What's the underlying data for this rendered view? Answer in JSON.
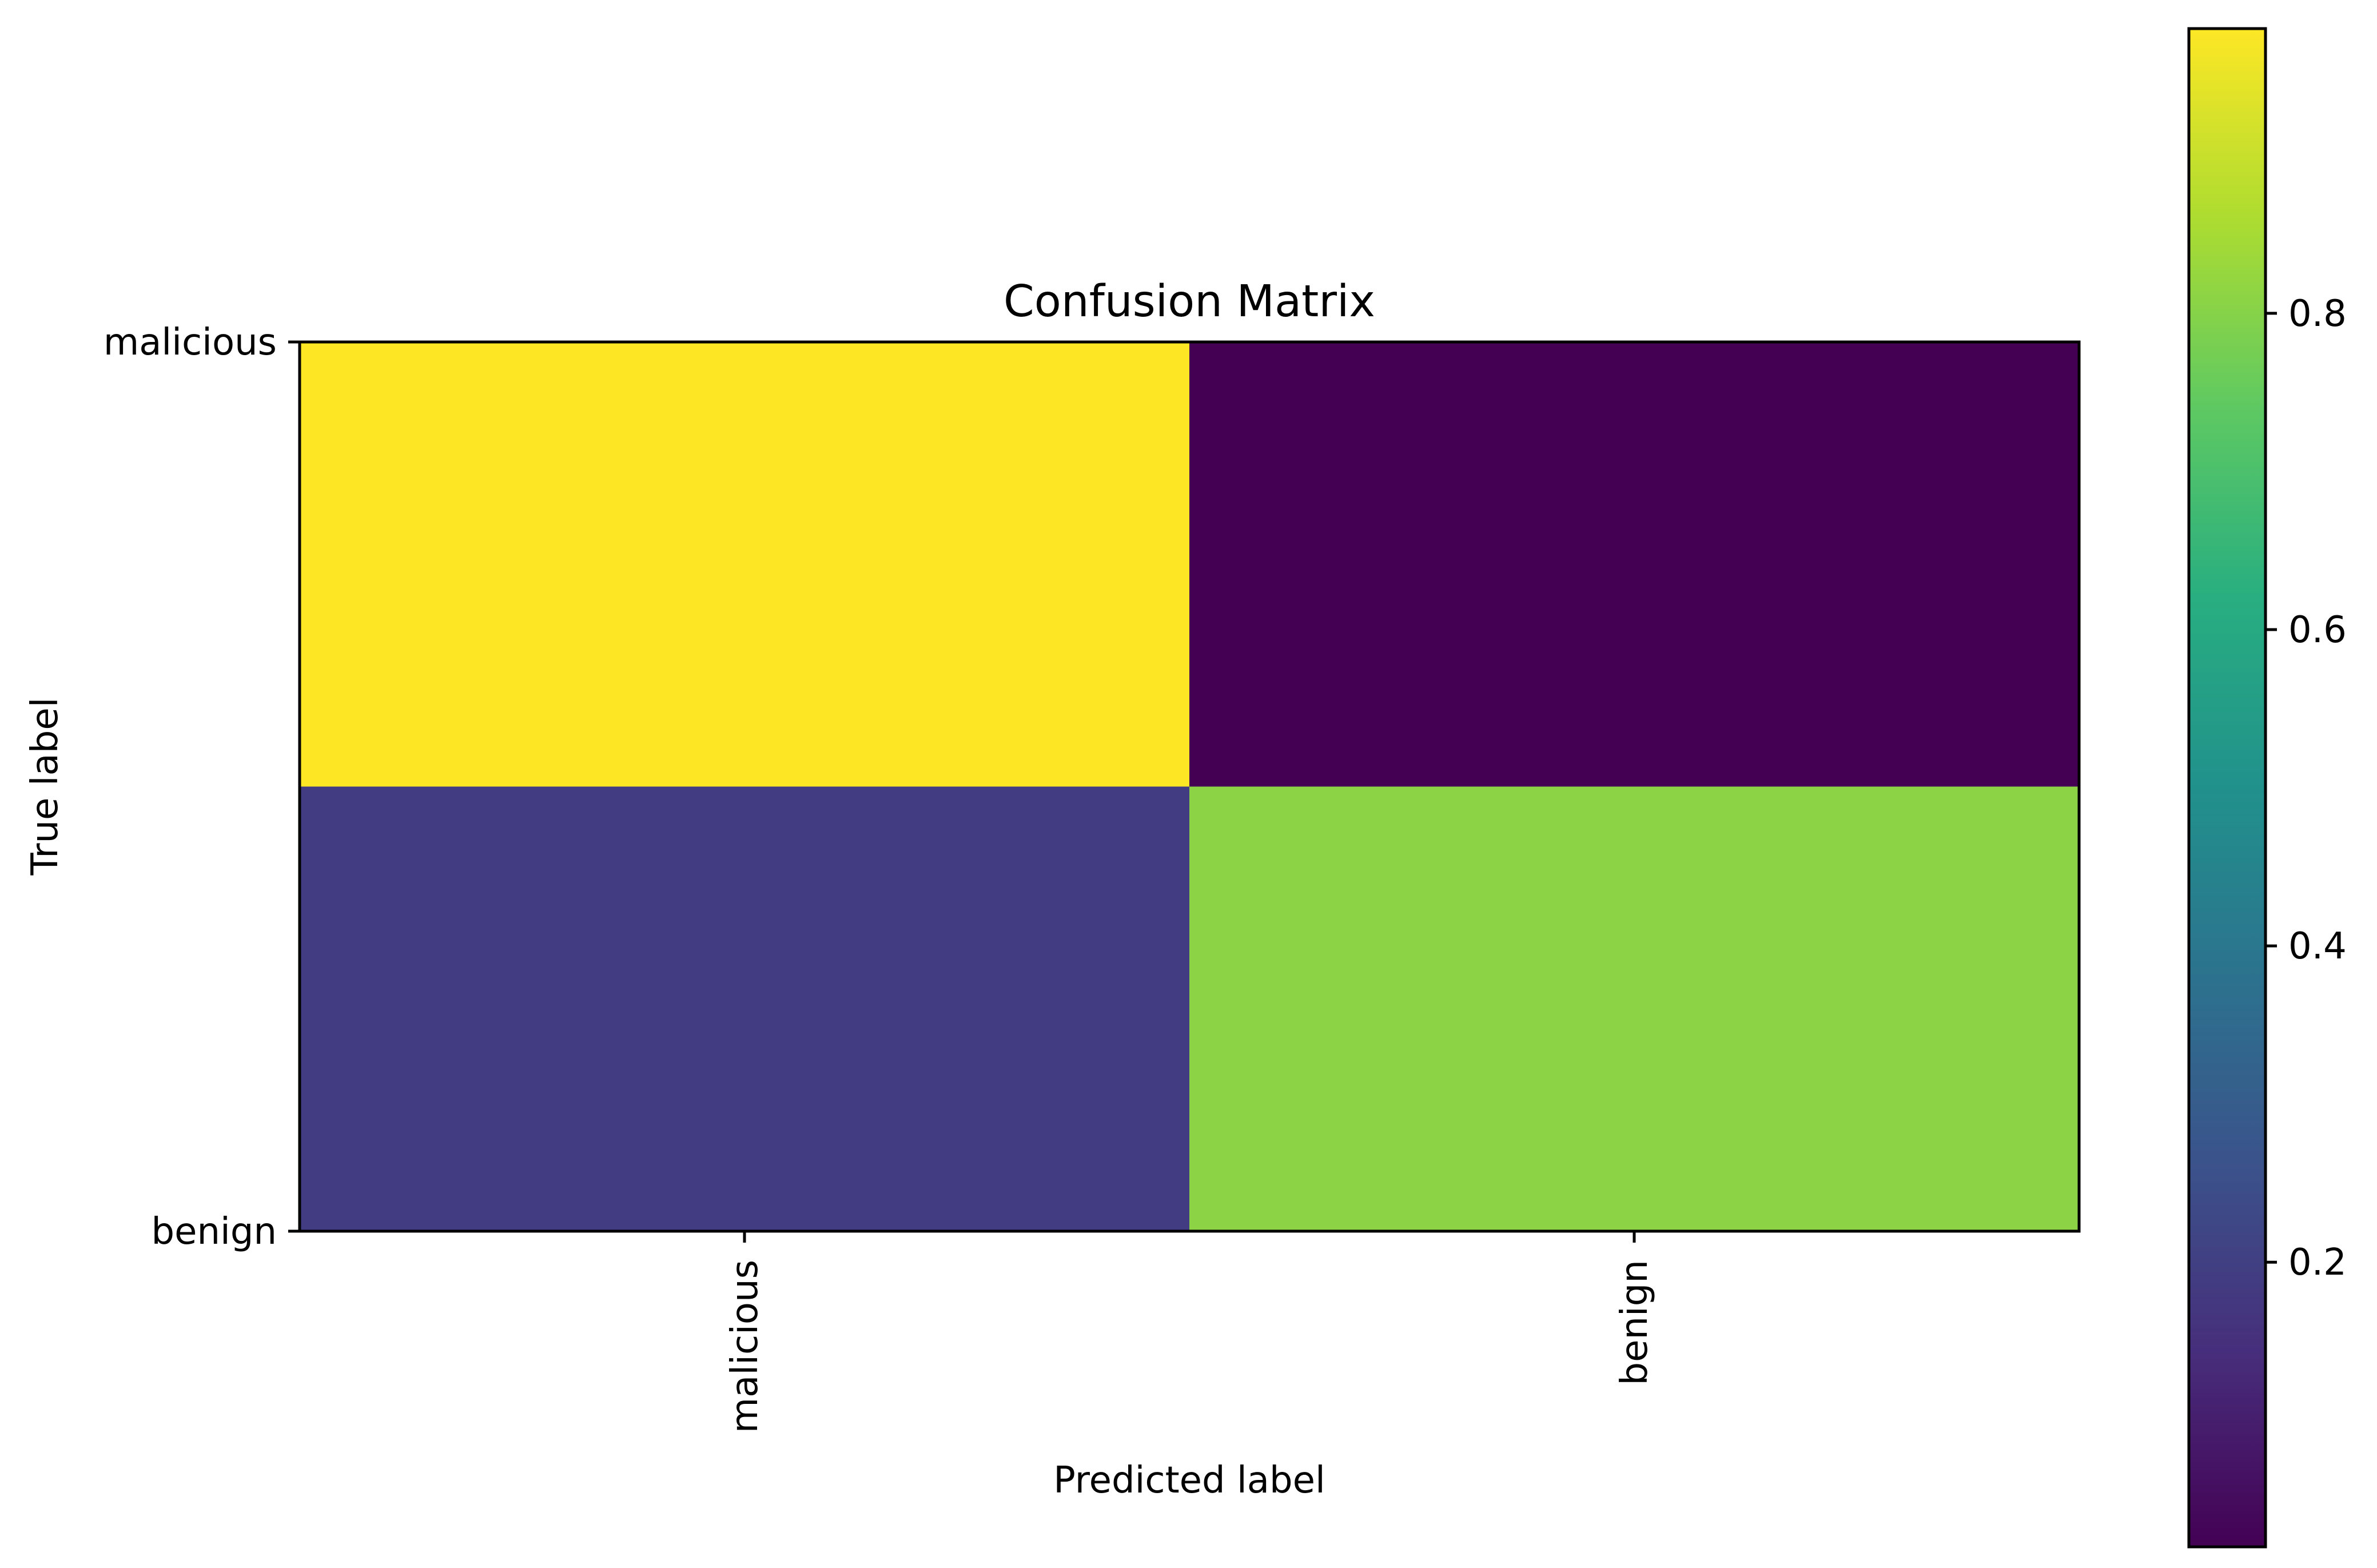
{
  "chart_data": {
    "type": "heatmap",
    "title": "Confusion Matrix",
    "xlabel": "Predicted label",
    "ylabel": "True label",
    "x_categories": [
      "malicious",
      "benign"
    ],
    "y_categories": [
      "malicious",
      "benign"
    ],
    "values": [
      [
        0.98,
        0.02
      ],
      [
        0.19,
        0.81
      ]
    ],
    "colorbar": {
      "colormap": "viridis",
      "range": [
        0.02,
        0.98
      ],
      "ticks": [
        0.2,
        0.4,
        0.6,
        0.8
      ],
      "tick_labels": [
        "0.2",
        "0.4",
        "0.6",
        "0.8"
      ]
    },
    "legend": "colorbar right",
    "grid": false
  }
}
